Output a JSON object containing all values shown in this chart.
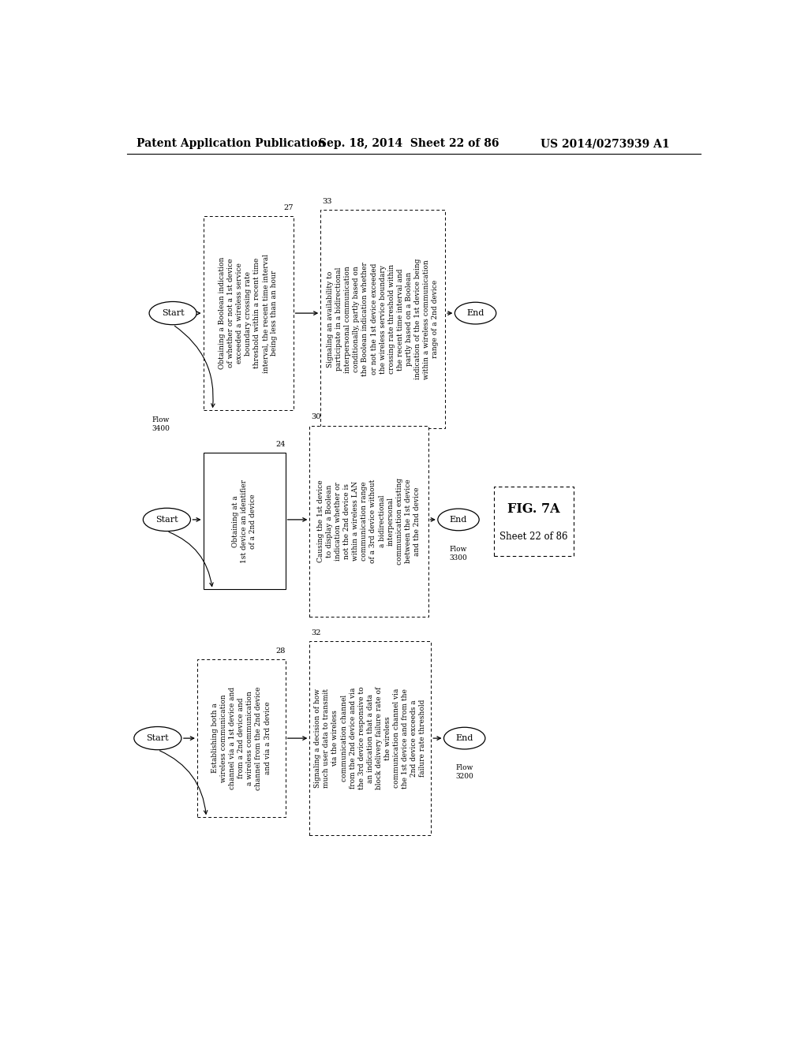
{
  "header_left": "Patent Application Publication",
  "header_mid": "Sep. 18, 2014  Sheet 22 of 86",
  "header_right": "US 2014/0273939 A1",
  "flow1": {
    "label": "Flow\n3400",
    "start_label": "Start",
    "box1_num": "27",
    "box1_text": "Obtaining a Boolean indication\nof whether or not a 1st device\nexceeded a wireless service\nboundary crossing rate\nthreshold within a recent time\ninterval, the recent time interval\nbeing less than an hour",
    "box2_num": "33",
    "box2_text": "Signaling an availability to\nparticipate in a bidirectional\ninterpersonal communication\nconditionally, partly based on\nthe Boolean indication whether\nor not the 1st device exceeded\nthe wireless service boundary\ncrossing rate threshold within\nthe recent time interval and\npartly based on a Boolean\nindication of the 1st device being\nwithin a wireless communication\nrange of a 2nd device",
    "end_label": "End"
  },
  "flow2": {
    "label": "Flow\n3300",
    "start_label": "Start",
    "box1_num": "24",
    "box1_text": "Obtaining at a\n1st device an identifier\nof a 2nd device",
    "box2_num": "30",
    "box2_text": "Causing the 1st device\nto display a Boolean\nindication whether or\nnot the 2nd device is\nwithin a wireless LAN\ncommunication range\nof a 3rd device without\na bidirectional\ninterpersonal\ncommunication existing\nbetween the 1st device\nand the 2nd device",
    "end_label": "End",
    "fig_label": "FIG. 7A",
    "sheet_label": "Sheet 22 of 86"
  },
  "flow3": {
    "label": "Flow\n3200",
    "start_label": "Start",
    "box1_num": "28",
    "box1_text": "Establishing both a\nwireless communication\nchannel via a 1st device and\nfrom a 2nd device and\na wireless communication\nchannel from the 2nd device\nand via a 3rd device",
    "box2_num": "32",
    "box2_text": "Signaling a decision of how\nmuch user data to transmit\nvia the wireless\ncommunication channel\nfrom the 2nd device and via\nthe 3rd device responsive to\nan indication that a data\nblock delivery failure rate of\nthe wireless\ncommunication channel via\nthe 1st device and from the\n2nd device exceeds a\nfailure rate threshold",
    "end_label": "End"
  },
  "bg_color": "#ffffff",
  "text_color": "#000000",
  "font_size": 6.5,
  "header_font_size": 10.0
}
